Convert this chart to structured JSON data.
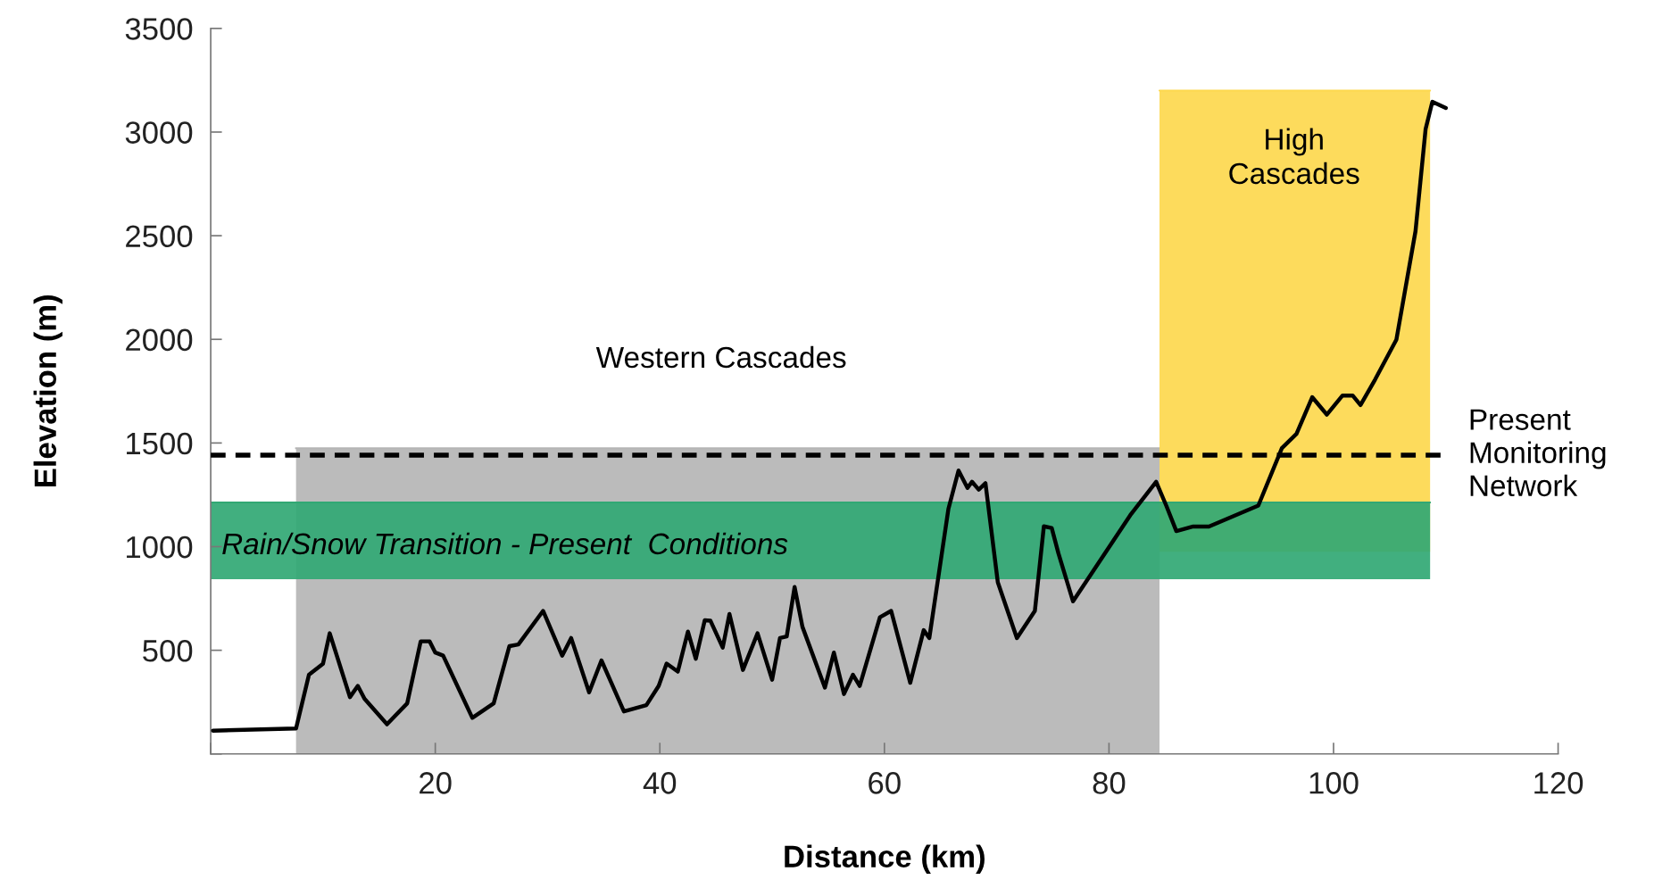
{
  "chart_data": {
    "type": "line",
    "xlabel": "Distance (km)",
    "ylabel": "Elevation (m)",
    "xlim": [
      0,
      120
    ],
    "xticks": [
      {
        "value": 0,
        "label": null
      },
      20,
      40,
      60,
      80,
      100,
      120
    ],
    "ylim": [
      0,
      3500
    ],
    "yticks": [
      {
        "value": 0,
        "label": null
      },
      500,
      1000,
      1500,
      2000,
      2500,
      3000,
      3500
    ],
    "grid": false,
    "series": [
      {
        "type": "area",
        "color": "#b5b5b5",
        "x": [
          7.6,
          84.5
        ],
        "values": [
          1475,
          1475
        ]
      },
      {
        "type": "line",
        "color": "#fdd84e",
        "x": [
          84.5,
          108.6
        ],
        "values": [
          3200,
          3200
        ],
        "lower": [
          975,
          975
        ],
        "upper": [
          3200,
          3200
        ]
      },
      {
        "type": "line",
        "color": "#31a874",
        "x": [
          0,
          108.6
        ],
        "values": [
          1213,
          1213
        ],
        "lower": [
          843,
          843
        ],
        "upper": [
          1213,
          1213
        ]
      },
      {
        "color": "#000000",
        "x": [
          0.2,
          7.6,
          8.75,
          10.0,
          10.6,
          12.4,
          13.1,
          13.7,
          15.7,
          17.5,
          18.7,
          19.5,
          20.0,
          20.7,
          23.3,
          25.2,
          26.6,
          27.4,
          29.6,
          31.3,
          32.1,
          33.7,
          34.8,
          36.8,
          38.8,
          39.9,
          40.6,
          41.6,
          42.5,
          43.2,
          44.0,
          44.5,
          45.6,
          46.2,
          47.4,
          48.7,
          50.0,
          50.7,
          51.3,
          52.0,
          52.7,
          54.7,
          55.5,
          56.4,
          57.2,
          57.8,
          59.6,
          60.6,
          62.3,
          63.5,
          64.0,
          65.7,
          66.6,
          67.4,
          67.8,
          68.4,
          69.0,
          70.1,
          71.8,
          73.4,
          74.2,
          74.9,
          75.5,
          76.8,
          81.9,
          84.2,
          85.1,
          86.0,
          87.5,
          88.9,
          93.3,
          95.4,
          96.7,
          98.1,
          99.4,
          100.8,
          101.7,
          102.4,
          103.7,
          105.6,
          107.3,
          108.2,
          108.8,
          110.0
        ],
        "values": [
          112,
          123,
          382,
          435,
          582,
          274,
          328,
          266,
          143,
          244,
          543,
          543,
          489,
          474,
          174,
          244,
          520,
          528,
          690,
          474,
          559,
          297,
          451,
          205,
          235,
          328,
          436,
          397,
          590,
          459,
          645,
          643,
          513,
          675,
          405,
          582,
          358,
          559,
          567,
          805,
          613,
          320,
          489,
          289,
          382,
          328,
          659,
          690,
          343,
          597,
          559,
          1182,
          1367,
          1283,
          1313,
          1275,
          1306,
          828,
          559,
          690,
          1098,
          1090,
          967,
          736,
          1152,
          1313,
          1198,
          1075,
          1097,
          1097,
          1198,
          1475,
          1544,
          1721,
          1637,
          1729,
          1729,
          1683,
          1806,
          1999,
          2522,
          3015,
          3146,
          3116
        ]
      }
    ],
    "ref_lines": [
      {
        "axis": "y",
        "value": 1441,
        "label": "Present\nMonitoring\nNetwork",
        "color": "#000000",
        "line_style": "dashed"
      }
    ],
    "annotations": [
      "Western Cascades",
      "High\nCascades",
      "Rain/Snow Transition - Present  Conditions"
    ]
  }
}
